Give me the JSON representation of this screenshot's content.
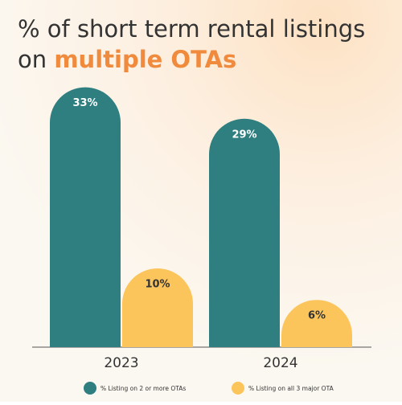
{
  "chart_data": {
    "type": "bar",
    "title": "% of short term rental listings",
    "title_line2_prefix": "on",
    "title_highlight": "multiple OTAs",
    "categories": [
      "2023",
      "2024"
    ],
    "series": [
      {
        "name": "% Listing on 2 or more OTAs",
        "color": "#2f7f80",
        "values": [
          33,
          29
        ],
        "value_labels": [
          "33%",
          "29%"
        ]
      },
      {
        "name": "% Listing on all 3 major OTA",
        "color": "#fcc55c",
        "values": [
          10,
          6
        ],
        "value_labels": [
          "10%",
          "6%"
        ]
      }
    ],
    "highlight_color": "#f08a3c"
  }
}
